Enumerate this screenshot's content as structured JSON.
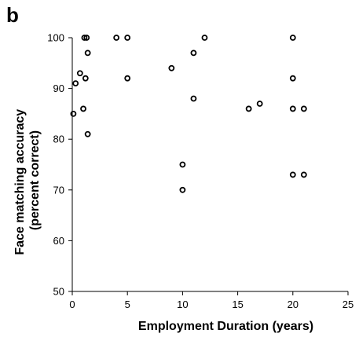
{
  "panel_label": "b",
  "chart_data": {
    "type": "scatter",
    "xlabel": "Employment Duration (years)",
    "ylabel_line1": "Face matching accuracy",
    "ylabel_line2": "(percent correct)",
    "xlim": [
      0,
      25
    ],
    "ylim": [
      50,
      100
    ],
    "xticks": [
      0,
      5,
      10,
      15,
      20,
      25
    ],
    "yticks": [
      50,
      60,
      70,
      80,
      90,
      100
    ],
    "grid": false,
    "marker_color": "#000000",
    "points": [
      {
        "x": 0.1,
        "y": 85
      },
      {
        "x": 0.3,
        "y": 91
      },
      {
        "x": 0.7,
        "y": 93
      },
      {
        "x": 1.0,
        "y": 86
      },
      {
        "x": 1.1,
        "y": 100
      },
      {
        "x": 1.2,
        "y": 92
      },
      {
        "x": 1.3,
        "y": 100
      },
      {
        "x": 1.4,
        "y": 97
      },
      {
        "x": 1.4,
        "y": 81
      },
      {
        "x": 4.0,
        "y": 100
      },
      {
        "x": 5.0,
        "y": 100
      },
      {
        "x": 5.0,
        "y": 92
      },
      {
        "x": 9.0,
        "y": 94
      },
      {
        "x": 10.0,
        "y": 75
      },
      {
        "x": 10.0,
        "y": 70
      },
      {
        "x": 11.0,
        "y": 97
      },
      {
        "x": 11.0,
        "y": 88
      },
      {
        "x": 12.0,
        "y": 100
      },
      {
        "x": 16.0,
        "y": 86
      },
      {
        "x": 17.0,
        "y": 87
      },
      {
        "x": 20.0,
        "y": 100
      },
      {
        "x": 20.0,
        "y": 92
      },
      {
        "x": 20.0,
        "y": 86
      },
      {
        "x": 20.0,
        "y": 73
      },
      {
        "x": 21.0,
        "y": 86
      },
      {
        "x": 21.0,
        "y": 73
      }
    ]
  }
}
